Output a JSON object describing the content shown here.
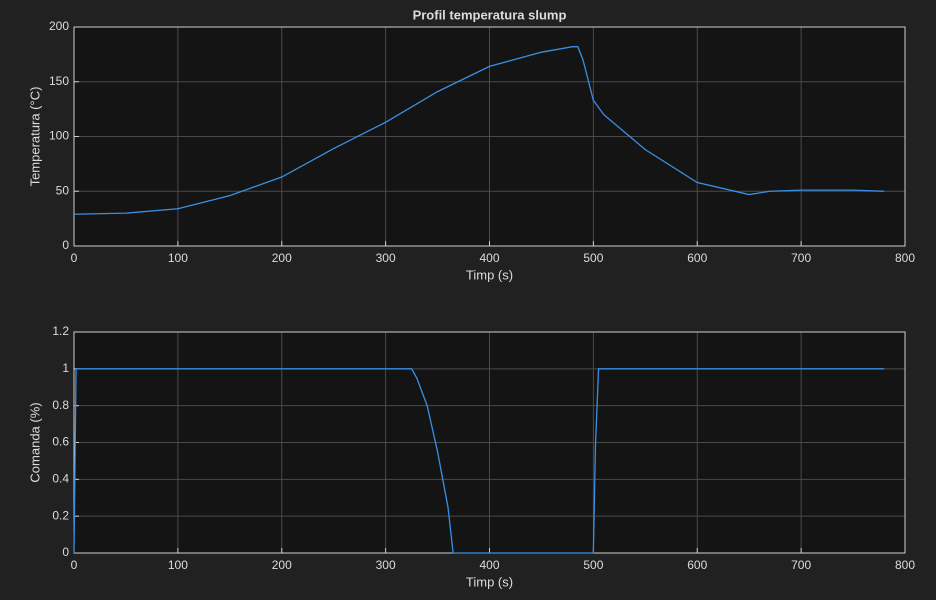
{
  "chart_data": [
    {
      "type": "line",
      "title": "Profil temperatura slump",
      "xlabel": "Timp (s)",
      "ylabel": "Temperatura (°C)",
      "x": [
        0,
        50,
        100,
        150,
        200,
        250,
        300,
        350,
        400,
        450,
        480,
        485,
        490,
        500,
        510,
        520,
        550,
        600,
        650,
        670,
        700,
        750,
        780
      ],
      "values": [
        29,
        30,
        34,
        46,
        63,
        89,
        113,
        141,
        164,
        177,
        182,
        182,
        170,
        133,
        120,
        112,
        88,
        58,
        47,
        50,
        51,
        51,
        50
      ],
      "color": "#3a8fe3",
      "xlim": [
        0,
        800
      ],
      "ylim": [
        0,
        200
      ],
      "xticks": [
        0,
        100,
        200,
        300,
        400,
        500,
        600,
        700,
        800
      ],
      "yticks": [
        0,
        50,
        100,
        150,
        200
      ],
      "grid": true
    },
    {
      "type": "line",
      "xlabel": "Timp (s)",
      "ylabel": "Comanda (%)",
      "x": [
        0,
        2,
        325,
        330,
        340,
        350,
        360,
        365,
        500,
        502,
        505,
        780
      ],
      "values": [
        0,
        1,
        1,
        0.95,
        0.8,
        0.55,
        0.25,
        0,
        0,
        0.58,
        1,
        1
      ],
      "color": "#3a8fe3",
      "xlim": [
        0,
        800
      ],
      "ylim": [
        0,
        1.2
      ],
      "xticks": [
        0,
        100,
        200,
        300,
        400,
        500,
        600,
        700,
        800
      ],
      "yticks": [
        0,
        0.2,
        0.4,
        0.6,
        0.8,
        1,
        1.2
      ],
      "grid": true
    }
  ]
}
